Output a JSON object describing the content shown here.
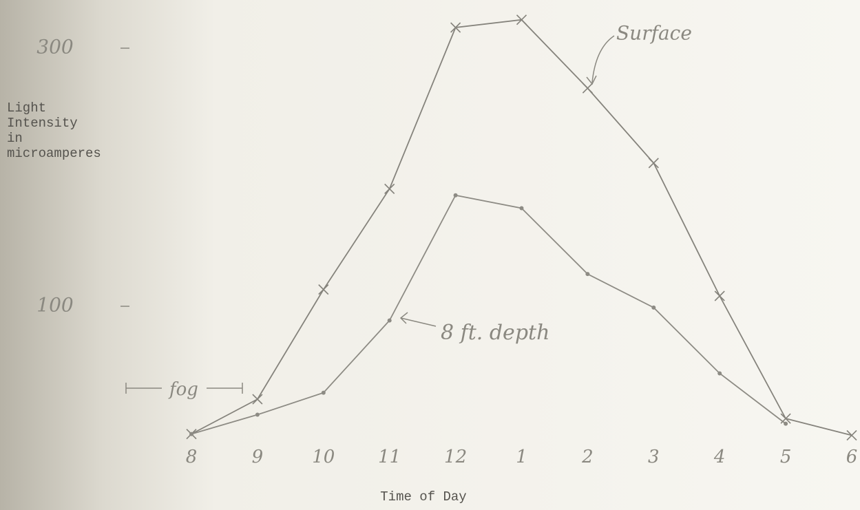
{
  "chart_data": {
    "type": "line",
    "ylabel_lines": [
      "Light",
      "Intensity",
      "in",
      "microamperes"
    ],
    "xlabel": "Time of Day",
    "categories": [
      "8",
      "9",
      "10",
      "11",
      "12",
      "1",
      "2",
      "3",
      "4",
      "5",
      "6"
    ],
    "series": [
      {
        "name": "Surface",
        "color": "#85837c",
        "marker": "x",
        "values": [
          1,
          28,
          113,
          191,
          316,
          322,
          269,
          211,
          108,
          13,
          0
        ]
      },
      {
        "name": "8 ft. depth",
        "color": "#8d8b84",
        "marker": "dot",
        "values": [
          1,
          16,
          33,
          89,
          186,
          176,
          125,
          99,
          48,
          9,
          null
        ]
      }
    ],
    "annotations": [
      "fog"
    ],
    "ylim": [
      0,
      320
    ],
    "yticks": [
      100,
      300
    ],
    "grid": false
  }
}
